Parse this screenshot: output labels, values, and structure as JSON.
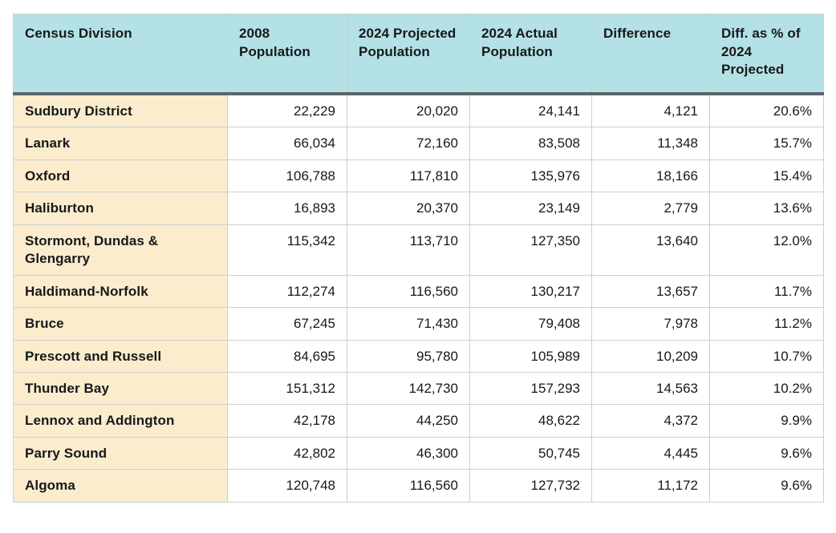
{
  "chart_data": {
    "type": "table",
    "title": "",
    "columns": [
      "Census Division",
      "2008 Population",
      "2024 Projected Population",
      "2024 Actual Population",
      "Difference",
      "Diff. as % of 2024 Projected"
    ],
    "rows": [
      {
        "census_division": "Sudbury District",
        "pop_2008": "22,229",
        "projected_2024": "20,020",
        "actual_2024": "24,141",
        "difference": "4,121",
        "diff_pct": "20.6%"
      },
      {
        "census_division": "Lanark",
        "pop_2008": "66,034",
        "projected_2024": "72,160",
        "actual_2024": "83,508",
        "difference": "11,348",
        "diff_pct": "15.7%"
      },
      {
        "census_division": "Oxford",
        "pop_2008": "106,788",
        "projected_2024": "117,810",
        "actual_2024": "135,976",
        "difference": "18,166",
        "diff_pct": "15.4%"
      },
      {
        "census_division": "Haliburton",
        "pop_2008": "16,893",
        "projected_2024": "20,370",
        "actual_2024": "23,149",
        "difference": "2,779",
        "diff_pct": "13.6%"
      },
      {
        "census_division": "Stormont, Dundas & Glengarry",
        "pop_2008": "115,342",
        "projected_2024": "113,710",
        "actual_2024": "127,350",
        "difference": "13,640",
        "diff_pct": "12.0%"
      },
      {
        "census_division": "Haldimand-Norfolk",
        "pop_2008": "112,274",
        "projected_2024": "116,560",
        "actual_2024": "130,217",
        "difference": "13,657",
        "diff_pct": "11.7%"
      },
      {
        "census_division": "Bruce",
        "pop_2008": "67,245",
        "projected_2024": "71,430",
        "actual_2024": "79,408",
        "difference": "7,978",
        "diff_pct": "11.2%"
      },
      {
        "census_division": "Prescott and Russell",
        "pop_2008": "84,695",
        "projected_2024": "95,780",
        "actual_2024": "105,989",
        "difference": "10,209",
        "diff_pct": "10.7%"
      },
      {
        "census_division": "Thunder Bay",
        "pop_2008": "151,312",
        "projected_2024": "142,730",
        "actual_2024": "157,293",
        "difference": "14,563",
        "diff_pct": "10.2%"
      },
      {
        "census_division": "Lennox and Addington",
        "pop_2008": "42,178",
        "projected_2024": "44,250",
        "actual_2024": "48,622",
        "difference": "4,372",
        "diff_pct": "9.9%"
      },
      {
        "census_division": "Parry Sound",
        "pop_2008": "42,802",
        "projected_2024": "46,300",
        "actual_2024": "50,745",
        "difference": "4,445",
        "diff_pct": "9.6%"
      },
      {
        "census_division": "Algoma",
        "pop_2008": "120,748",
        "projected_2024": "116,560",
        "actual_2024": "127,732",
        "difference": "11,172",
        "diff_pct": "9.6%"
      }
    ],
    "layout": {
      "header_row": true,
      "grid": true,
      "value_alignment": "right",
      "label_column_alignment": "left"
    },
    "colors": {
      "header_bg": "#b3e1e5",
      "header_border": "#5e6468",
      "row_label_bg": "#faeccd",
      "grid_line": "#cbcfd4",
      "text": "#17181a",
      "cell_bg": "#ffffff"
    }
  }
}
